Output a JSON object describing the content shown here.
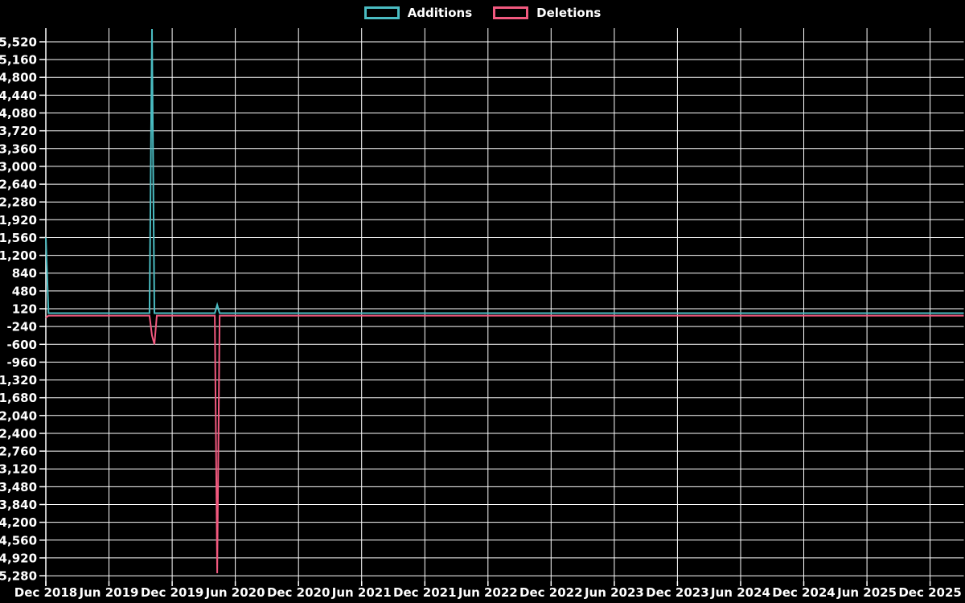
{
  "legend": {
    "position": "top-center",
    "items": [
      "Additions",
      "Deletions"
    ]
  },
  "chart_data": {
    "type": "line",
    "title": "",
    "xlabel": "",
    "ylabel": "",
    "grid": true,
    "background": "#000000",
    "grid_color": "#ffffff",
    "text_color": "#ffffff",
    "legend_position": "top-center",
    "x_unit": "months since Dec 2018 (weekly data points)",
    "xlim_months": [
      0,
      87.2
    ],
    "ylim": [
      -5393,
      5796
    ],
    "xtick_labels": [
      "Dec 2018",
      "Jun 2019",
      "Dec 2019",
      "Jun 2020",
      "Dec 2020",
      "Jun 2021",
      "Dec 2021",
      "Jun 2022",
      "Dec 2022",
      "Jun 2023",
      "Dec 2023",
      "Jun 2024",
      "Dec 2024",
      "Jun 2025",
      "Dec 2025"
    ],
    "xtick_months": [
      0,
      6,
      12,
      18,
      24,
      30,
      36,
      42,
      48,
      54,
      60,
      66,
      72,
      78,
      84
    ],
    "ytick_values": [
      5520,
      5160,
      4800,
      4440,
      4080,
      3720,
      3360,
      3000,
      2640,
      2280,
      1920,
      1560,
      1200,
      840,
      480,
      120,
      -240,
      -600,
      -960,
      -1320,
      -1680,
      -2040,
      -2400,
      -2760,
      -3120,
      -3480,
      -3840,
      -4200,
      -4560,
      -4920,
      -5280
    ],
    "ytick_labels": [
      "5,520",
      "5,160",
      "4,800",
      "4,440",
      "4,080",
      "3,720",
      "3,360",
      "3,000",
      "2,640",
      "2,280",
      "1,920",
      "1,560",
      "1,200",
      "840",
      "480",
      "120",
      "-240",
      "-600",
      "-960",
      "-1,320",
      "-1,680",
      "-2,040",
      "-2,400",
      "-2,760",
      "-3,120",
      "-3,480",
      "-3,840",
      "-4,200",
      "-4,560",
      "-4,920",
      "-5,280"
    ],
    "series": [
      {
        "name": "Additions",
        "color": "#4abcc2",
        "notes": "flat baseline ~+30 except spikes: 1,560 at Dec 2018; ~5,780 in Oct 2019; ~200 in Apr 2020",
        "points": [
          [
            0,
            1560
          ],
          [
            0.25,
            30
          ],
          [
            9.85,
            30
          ],
          [
            10.08,
            5780
          ],
          [
            10.31,
            30
          ],
          [
            16.05,
            30
          ],
          [
            16.28,
            200
          ],
          [
            16.51,
            30
          ],
          [
            87.2,
            30
          ]
        ]
      },
      {
        "name": "Deletions",
        "color": "#f2597f",
        "notes": "flat baseline ~-20 except spikes: -60 at Dec 2018; -420/-600 in Oct 2019; ~-5,230 in Apr 2020",
        "points": [
          [
            0,
            -60
          ],
          [
            0.25,
            -20
          ],
          [
            9.85,
            -20
          ],
          [
            10.08,
            -420
          ],
          [
            10.31,
            -600
          ],
          [
            10.54,
            -20
          ],
          [
            16.05,
            -20
          ],
          [
            16.28,
            -5230
          ],
          [
            16.51,
            -20
          ],
          [
            87.2,
            -20
          ]
        ]
      }
    ]
  }
}
